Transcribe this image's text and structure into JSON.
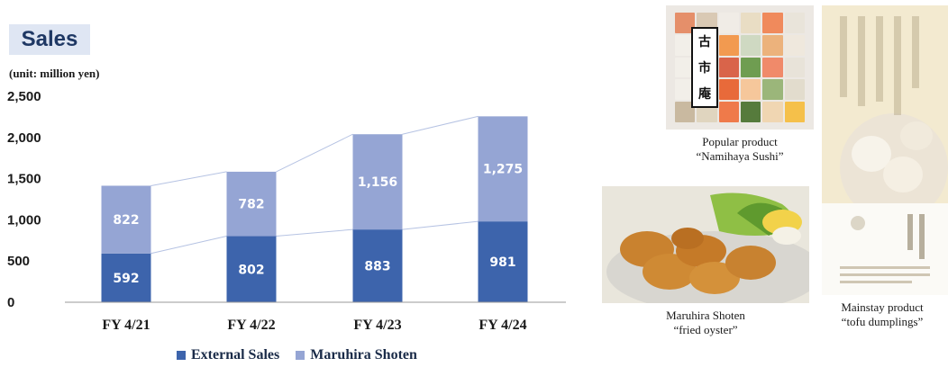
{
  "title": "Sales",
  "unit": "(unit: million yen)",
  "colors": {
    "external": "#3d64ac",
    "maruhira": "#95a5d4",
    "connector": "#b6c3e3",
    "title_bg": "#dfe6f3",
    "title_text": "#1f3864"
  },
  "chart_data": {
    "type": "bar",
    "stacked": true,
    "categories": [
      "FY 4/21",
      "FY 4/22",
      "FY 4/23",
      "FY 4/24"
    ],
    "series": [
      {
        "name": "External Sales",
        "values": [
          592,
          802,
          883,
          981
        ]
      },
      {
        "name": "Maruhira Shoten",
        "values": [
          822,
          782,
          1156,
          1275
        ]
      }
    ],
    "value_labels": [
      [
        "592",
        "802",
        "883",
        "981"
      ],
      [
        "822",
        "782",
        "1,156",
        "1,275"
      ]
    ],
    "yticks": [
      "0",
      "500",
      "1,000",
      "1,500",
      "2,000",
      "2,500"
    ],
    "ylim": [
      0,
      2500
    ],
    "grid": false,
    "legend": "bottom"
  },
  "products": {
    "sushi": {
      "caption_line1": "Popular product",
      "caption_line2": "“Namihaya Sushi”",
      "label_chars": [
        "古",
        "市",
        "庵"
      ]
    },
    "oyster": {
      "caption_line1": "Maruhira Shoten",
      "caption_line2": "“fried oyster”"
    },
    "tofu": {
      "caption_line1": "Mainstay product",
      "caption_line2": "“tofu dumplings”"
    }
  }
}
